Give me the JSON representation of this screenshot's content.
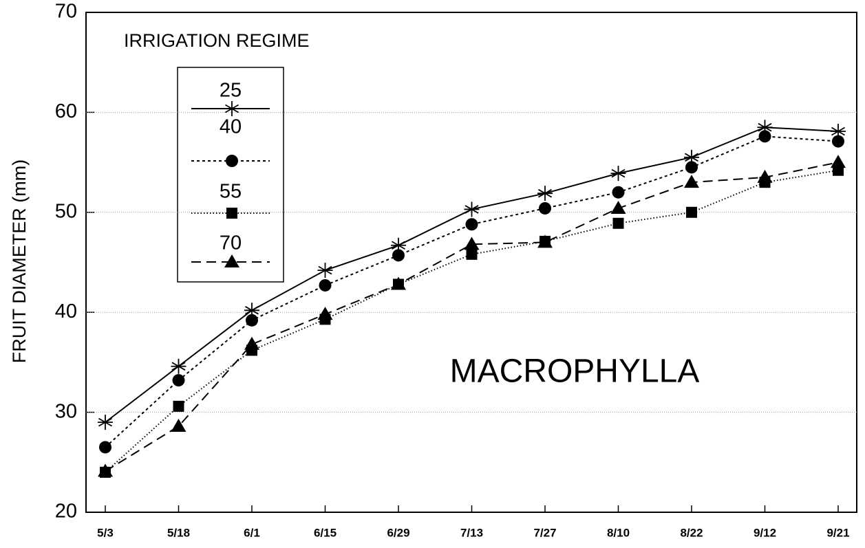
{
  "chart_data": {
    "type": "line",
    "y_axis_label": "FRUIT DIAMETER (mm)",
    "legend_title": "IRRIGATION REGIME",
    "annotation": "MACROPHYLLA",
    "categories": [
      "5/3",
      "5/18",
      "6/1",
      "6/15",
      "6/29",
      "7/13",
      "7/27",
      "8/10",
      "8/22",
      "9/12",
      "9/21"
    ],
    "series": [
      {
        "name": "25",
        "color": "#000000",
        "dash": "solid",
        "marker": "star",
        "values": [
          29,
          34.6,
          40.2,
          44.2,
          46.7,
          50.3,
          51.9,
          53.9,
          55.5,
          58.5,
          58.1
        ]
      },
      {
        "name": "40",
        "color": "#000000",
        "dash": "short-dash",
        "marker": "circle",
        "values": [
          26.5,
          33.2,
          39.2,
          42.7,
          45.7,
          48.8,
          50.4,
          52,
          54.5,
          57.6,
          57.1
        ]
      },
      {
        "name": "55",
        "color": "#000000",
        "dash": "dotted",
        "marker": "square",
        "values": [
          24,
          30.6,
          36.2,
          39.3,
          42.8,
          45.8,
          47.1,
          48.9,
          50,
          53,
          54.2
        ]
      },
      {
        "name": "70",
        "color": "#000000",
        "dash": "long-dash",
        "marker": "triangle",
        "values": [
          24.1,
          28.6,
          36.8,
          39.8,
          42.8,
          46.8,
          47,
          50.4,
          53,
          53.5,
          55
        ]
      }
    ],
    "ylim": [
      20,
      70
    ],
    "yticks": [
      20,
      30,
      40,
      50,
      60,
      70
    ],
    "grid": true
  }
}
